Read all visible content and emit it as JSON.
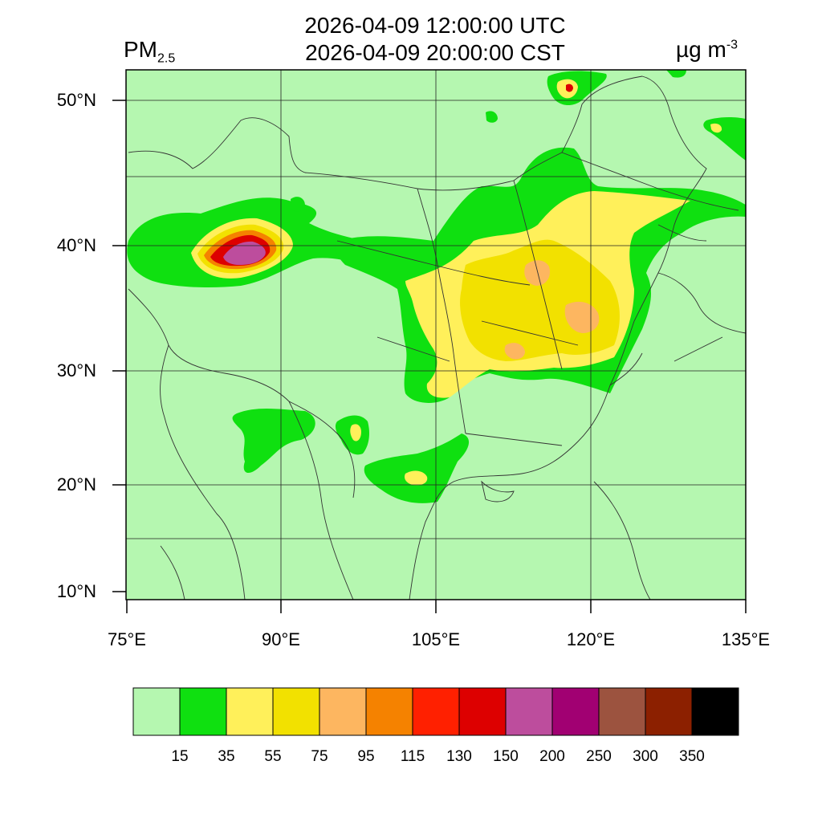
{
  "title": {
    "utc": "2026-04-09 12:00:00 UTC",
    "cst": "2026-04-09 20:00:00 CST"
  },
  "variable": {
    "name": "PM",
    "subscript": "2.5"
  },
  "units": {
    "base": "µg m",
    "exponent": "-3"
  },
  "map": {
    "lat_labels": [
      "50°N",
      "40°N",
      "30°N",
      "20°N",
      "10°N"
    ],
    "lon_labels": [
      "75°E",
      "90°E",
      "105°E",
      "120°E",
      "135°E"
    ]
  },
  "colorbar": {
    "colors": [
      "#b5f7b0",
      "#0fe010",
      "#fff05a",
      "#f2e100",
      "#fdb660",
      "#f58200",
      "#ff2000",
      "#dd0000",
      "#bd4d9d",
      "#a10072",
      "#9c533f",
      "#8c2000",
      "#000000"
    ],
    "labels": [
      "15",
      "35",
      "55",
      "75",
      "95",
      "115",
      "130",
      "150",
      "200",
      "250",
      "300",
      "350"
    ]
  }
}
